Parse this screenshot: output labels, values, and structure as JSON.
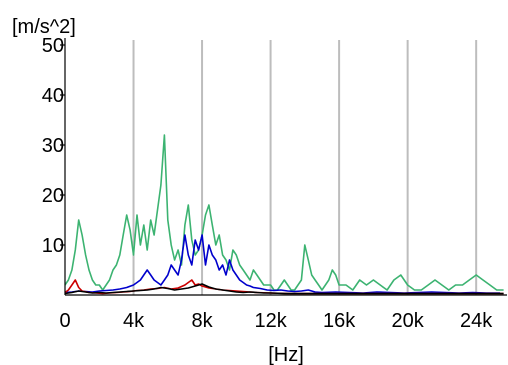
{
  "chart_data": {
    "type": "line",
    "xlabel": "[Hz]",
    "ylabel": "[m/s^2]",
    "xlim": [
      0,
      25800
    ],
    "ylim": [
      0,
      51
    ],
    "x_ticks": [
      0,
      4000,
      8000,
      12000,
      16000,
      20000,
      24000
    ],
    "x_tick_labels": [
      "0",
      "4k",
      "8k",
      "12k",
      "16k",
      "20k",
      "24k"
    ],
    "y_ticks": [
      10,
      20,
      30,
      40,
      50
    ],
    "y_tick_labels": [
      "10",
      "20",
      "30",
      "40",
      "50"
    ],
    "grid": "vertical",
    "colors": {
      "axis": "#000000",
      "grid": "#bdbdbd"
    },
    "series": [
      {
        "color": "#3cb371",
        "x": [
          0,
          200,
          400,
          600,
          800,
          1000,
          1200,
          1400,
          1600,
          1800,
          2000,
          2200,
          2400,
          2600,
          2800,
          3000,
          3200,
          3400,
          3600,
          3800,
          4000,
          4200,
          4400,
          4600,
          4800,
          5000,
          5200,
          5400,
          5600,
          5800,
          6000,
          6200,
          6400,
          6600,
          6800,
          7000,
          7200,
          7400,
          7600,
          7800,
          8000,
          8200,
          8400,
          8600,
          8800,
          9000,
          9200,
          9400,
          9600,
          9800,
          10000,
          10200,
          10400,
          10600,
          10800,
          11000,
          11200,
          11400,
          11600,
          11800,
          12000,
          12200,
          12400,
          12600,
          12800,
          13000,
          13200,
          13400,
          13600,
          13800,
          14000,
          14200,
          14400,
          14600,
          14800,
          15000,
          15200,
          15400,
          15600,
          15800,
          16000,
          16400,
          16800,
          17200,
          17600,
          18000,
          18400,
          18800,
          19200,
          19600,
          20000,
          20400,
          20800,
          21200,
          21600,
          22000,
          22400,
          22800,
          23200,
          23600,
          24000,
          24400,
          24800,
          25200,
          25600
        ],
        "values": [
          2,
          3,
          5,
          9,
          15,
          12,
          8,
          5,
          3,
          2,
          2,
          1,
          2,
          3,
          5,
          6,
          8,
          12,
          16,
          13,
          8,
          16,
          10,
          14,
          9,
          15,
          12,
          17,
          22,
          32,
          15,
          10,
          7,
          9,
          6,
          14,
          18,
          11,
          8,
          9,
          12,
          16,
          18,
          14,
          10,
          12,
          8,
          7,
          5,
          9,
          8,
          6,
          5,
          4,
          3,
          5,
          4,
          3,
          2,
          2,
          2,
          1,
          1,
          2,
          3,
          2,
          1,
          1,
          2,
          3,
          10,
          7,
          4,
          3,
          2,
          1,
          2,
          3,
          5,
          4,
          2,
          2,
          1,
          3,
          2,
          3,
          2,
          1,
          3,
          4,
          2,
          1,
          1,
          2,
          3,
          2,
          1,
          2,
          2,
          3,
          4,
          3,
          2,
          1,
          1
        ],
        "name": ""
      },
      {
        "color": "#0000cc",
        "x": [
          0,
          400,
          800,
          1200,
          1600,
          2000,
          2400,
          2800,
          3200,
          3600,
          4000,
          4200,
          4400,
          4600,
          4800,
          5000,
          5200,
          5400,
          5600,
          5800,
          6000,
          6200,
          6400,
          6600,
          6800,
          7000,
          7200,
          7400,
          7600,
          7800,
          8000,
          8200,
          8400,
          8600,
          8800,
          9000,
          9200,
          9400,
          9600,
          9800,
          10000,
          10200,
          10400,
          10600,
          10800,
          11000,
          11400,
          11800,
          12200,
          12600,
          13000,
          13400,
          13800,
          14200,
          14600,
          15000,
          15800,
          16600,
          17400,
          18200,
          19000,
          19800,
          20600,
          21400,
          22200,
          23000,
          23800,
          24600,
          25400
        ],
        "values": [
          0.5,
          0.6,
          0.8,
          0.7,
          0.6,
          0.8,
          0.9,
          1,
          1.2,
          1.5,
          2,
          2.5,
          3,
          4,
          5,
          4,
          3,
          2.5,
          2,
          3,
          4,
          6,
          5,
          4,
          7,
          12,
          8,
          6,
          11,
          9,
          12,
          6,
          10,
          8,
          7,
          5,
          6,
          4,
          7,
          5,
          4,
          3,
          2.5,
          2,
          1.8,
          1.5,
          1.3,
          1,
          0.9,
          1,
          0.8,
          0.7,
          0.8,
          1,
          0.6,
          0.5,
          0.6,
          0.5,
          0.4,
          0.6,
          0.5,
          0.4,
          0.5,
          0.6,
          0.5,
          0.4,
          0.5,
          0.4,
          0.4
        ],
        "name": ""
      },
      {
        "color": "#cc0000",
        "x": [
          0,
          200,
          400,
          600,
          800,
          1000,
          1400,
          1800,
          2200,
          2600,
          3000,
          3400,
          3800,
          4200,
          4600,
          5000,
          5400,
          5800,
          6200,
          6600,
          7000,
          7200,
          7400,
          7600,
          7800,
          8000,
          8200,
          8400,
          8800,
          9200,
          9600,
          10000,
          10400,
          10800,
          11200,
          12000,
          13000,
          14000,
          16000,
          18000,
          20000,
          22000,
          24000,
          25600
        ],
        "values": [
          0.5,
          1,
          2,
          3,
          1.5,
          0.8,
          0.5,
          0.4,
          0.3,
          0.4,
          0.5,
          0.6,
          0.7,
          0.9,
          1,
          1.2,
          1.3,
          1.5,
          1.2,
          1.4,
          2,
          2.5,
          3,
          2,
          2.2,
          1.8,
          1.6,
          1.4,
          1.2,
          1,
          0.9,
          0.8,
          0.7,
          0.6,
          0.5,
          0.4,
          0.3,
          0.3,
          0.3,
          0.3,
          0.3,
          0.3,
          0.3,
          0.3
        ],
        "name": ""
      },
      {
        "color": "#000000",
        "x": [
          0,
          400,
          800,
          1200,
          1600,
          2000,
          2400,
          2800,
          3200,
          3600,
          4000,
          4400,
          4800,
          5200,
          5600,
          6000,
          6400,
          6800,
          7200,
          7600,
          8000,
          8400,
          8800,
          9200,
          9600,
          10000,
          10400,
          10800,
          11200,
          11600,
          12000,
          12800,
          13600,
          14400,
          15200,
          16000,
          16800,
          17600,
          18400,
          19200,
          20000,
          20800,
          21600,
          22400,
          23200,
          24000,
          24800,
          25600
        ],
        "values": [
          0.3,
          0.5,
          0.8,
          0.6,
          0.4,
          0.5,
          0.4,
          0.5,
          0.6,
          0.7,
          0.8,
          0.9,
          1,
          1.2,
          1.5,
          1.3,
          1,
          1.2,
          1.4,
          1.8,
          2.2,
          1.6,
          1.2,
          1,
          0.8,
          0.6,
          0.5,
          0.6,
          0.5,
          0.4,
          0.4,
          0.3,
          0.3,
          0.3,
          0.3,
          0.3,
          0.3,
          0.3,
          0.3,
          0.3,
          0.3,
          0.3,
          0.3,
          0.3,
          0.3,
          0.3,
          0.3,
          0.3
        ],
        "name": ""
      }
    ]
  }
}
